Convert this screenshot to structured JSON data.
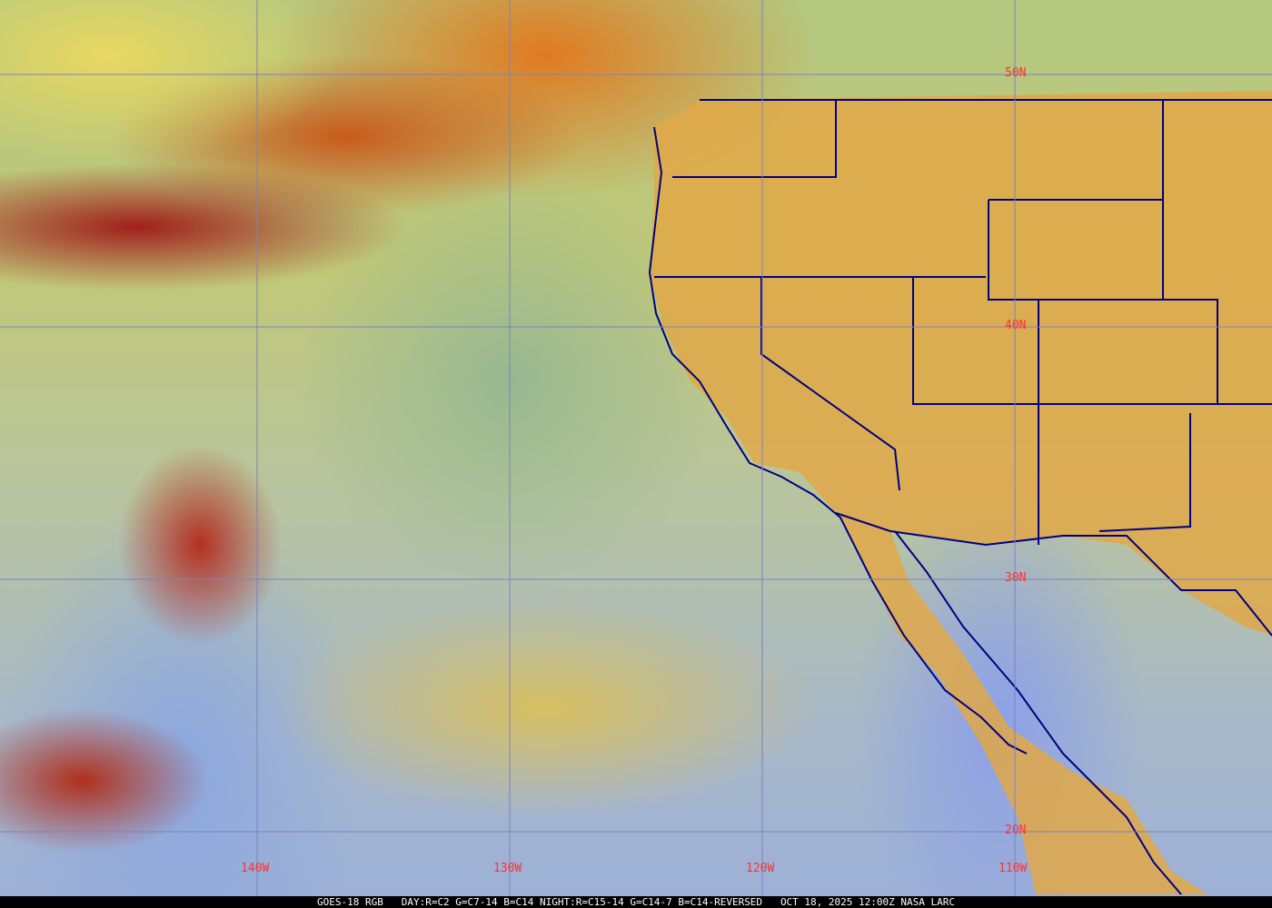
{
  "map": {
    "latitude_labels": [
      "50N",
      "40N",
      "30N",
      "20N"
    ],
    "longitude_labels": [
      "140W",
      "130W",
      "120W",
      "110W"
    ],
    "colors": {
      "grid": "#8080c0",
      "boundaries": "#000080",
      "labels": "#ff3030",
      "land": "#e0a848"
    }
  },
  "caption": {
    "satellite": "GOES-18 RGB",
    "recipe": "DAY:R=C2 G=C7-14 B=C14 NIGHT:R=C15-14 G=C14-7 B=C14-REVERSED",
    "datetime": "OCT 18, 2025 12:00Z",
    "source": "NASA LARC"
  }
}
